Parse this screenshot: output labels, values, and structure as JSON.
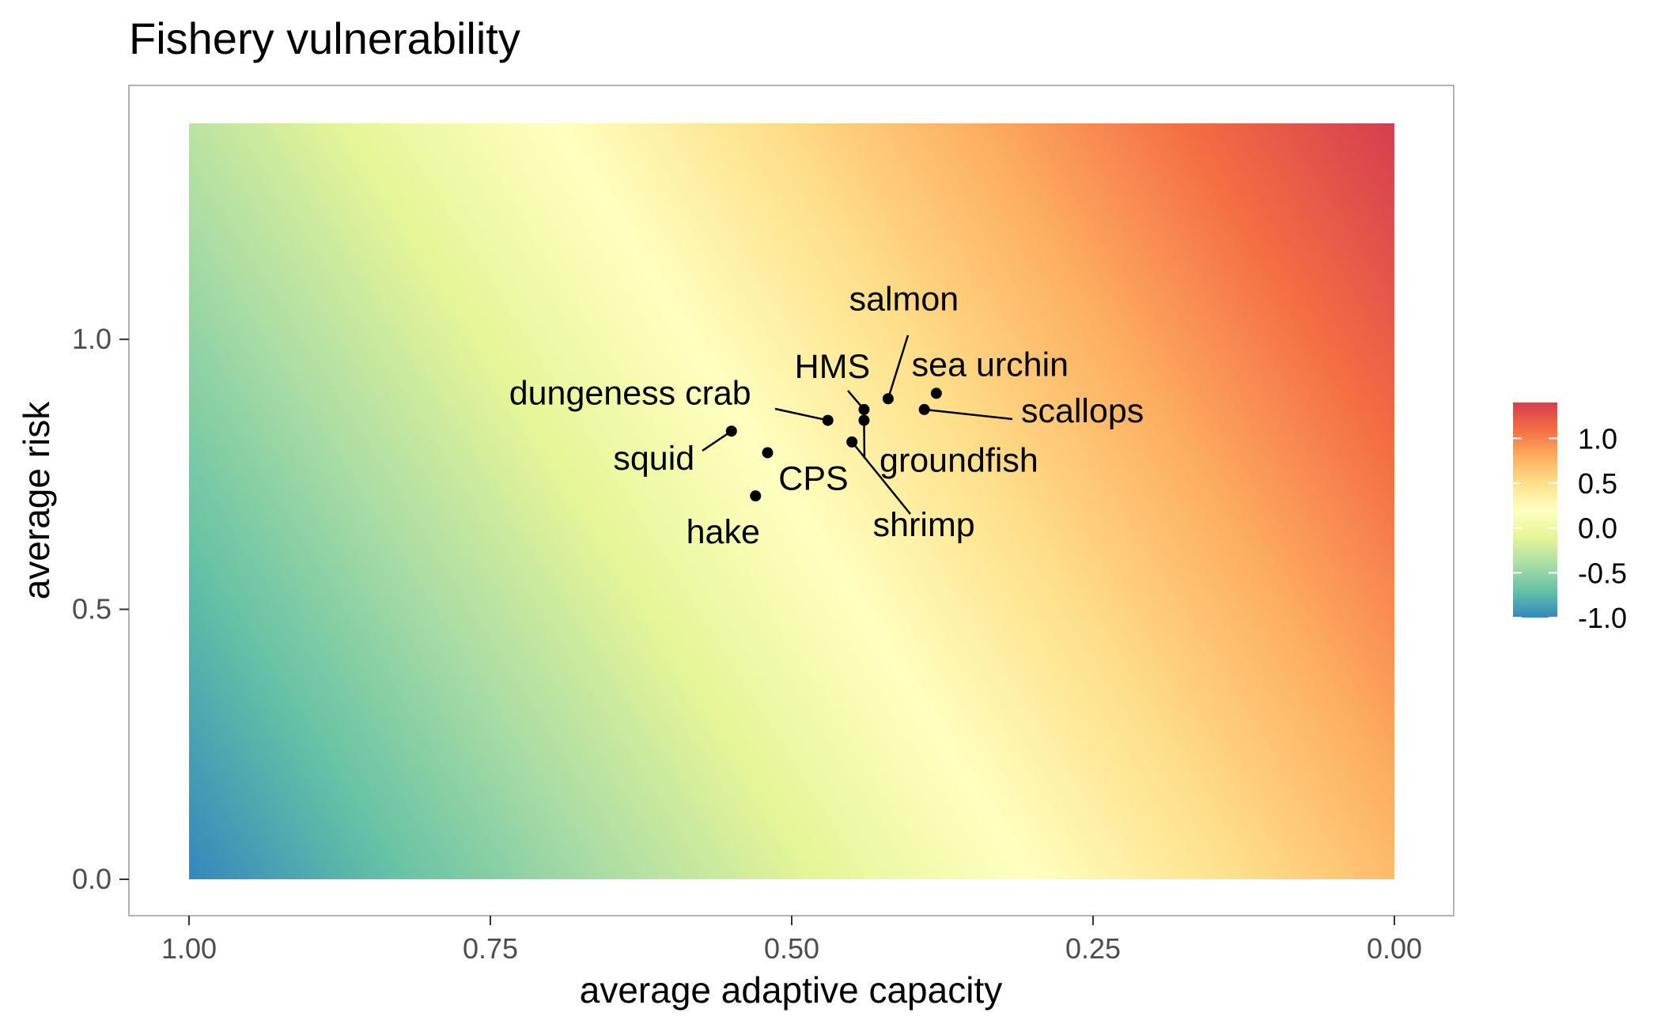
{
  "chart_data": {
    "type": "scatter",
    "title": "Fishery vulnerability",
    "xlabel": "average adaptive capacity",
    "ylabel": "average risk",
    "x_reversed": true,
    "xlim": [
      1.0,
      0.0
    ],
    "ylim": [
      0.0,
      1.4
    ],
    "x_ticks": [
      "1.00",
      "0.75",
      "0.50",
      "0.25",
      "0.00"
    ],
    "x_tick_values": [
      1.0,
      0.75,
      0.5,
      0.25,
      0.0
    ],
    "y_ticks": [
      "0.0",
      "0.5",
      "1.0"
    ],
    "y_tick_values": [
      0.0,
      0.5,
      1.0
    ],
    "grid": false,
    "background": "heatmap gradient: vulnerability = risk - adaptive capacity",
    "colorscale": {
      "palette": "Spectral",
      "range": [
        -1.0,
        1.4
      ],
      "ticks": [
        "1.0",
        "0.5",
        "0.0",
        "-0.5",
        "-1.0"
      ],
      "tick_values": [
        1.0,
        0.5,
        0.0,
        -0.5,
        -1.0
      ],
      "colors": [
        "#3288bd",
        "#66c2a5",
        "#abdda4",
        "#e6f598",
        "#ffffbf",
        "#fee08b",
        "#fdae61",
        "#f46d43",
        "#d53e4f"
      ],
      "legend_position": "right"
    },
    "points": [
      {
        "label": "salmon",
        "x": 0.42,
        "y": 0.89
      },
      {
        "label": "sea urchin",
        "x": 0.38,
        "y": 0.9
      },
      {
        "label": "HMS",
        "x": 0.44,
        "y": 0.87
      },
      {
        "label": "scallops",
        "x": 0.39,
        "y": 0.87
      },
      {
        "label": "dungeness crab",
        "x": 0.47,
        "y": 0.85
      },
      {
        "label": "groundfish",
        "x": 0.44,
        "y": 0.85
      },
      {
        "label": "squid",
        "x": 0.55,
        "y": 0.83
      },
      {
        "label": "shrimp",
        "x": 0.45,
        "y": 0.81
      },
      {
        "label": "CPS",
        "x": 0.52,
        "y": 0.79
      },
      {
        "label": "hake",
        "x": 0.53,
        "y": 0.71
      }
    ]
  }
}
